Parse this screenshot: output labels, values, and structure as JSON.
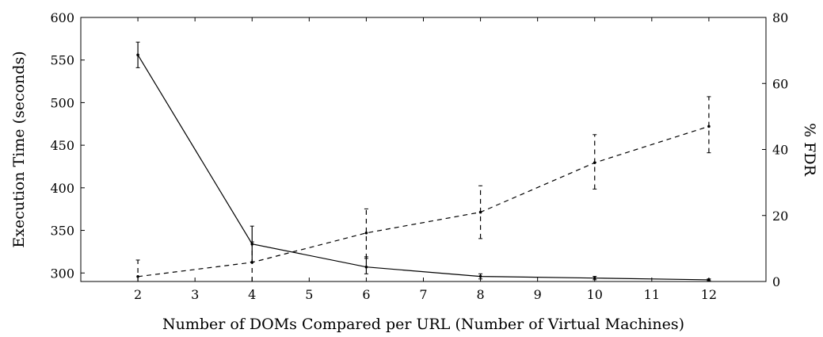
{
  "chart_data": {
    "type": "line",
    "xlabel": "Number of DOMs Compared per URL (Number of Virtual Machines)",
    "ylabel": "Execution Time (seconds)",
    "y2label": "% FDR",
    "xlim": [
      1,
      13
    ],
    "ylim": [
      290,
      600
    ],
    "y2lim": [
      0,
      80
    ],
    "x_ticks": [
      2,
      3,
      4,
      5,
      6,
      7,
      8,
      9,
      10,
      11,
      12
    ],
    "y_ticks": [
      300,
      350,
      400,
      450,
      500,
      550,
      600
    ],
    "y2_ticks": [
      0,
      20,
      40,
      60,
      80
    ],
    "grid": false,
    "legend": "none",
    "series": [
      {
        "axis": "left",
        "style": "solid",
        "color": "#000000",
        "x": [
          2,
          4,
          6,
          8,
          10,
          12
        ],
        "values": [
          556,
          334,
          307,
          296,
          294,
          292
        ],
        "err_low": [
          541,
          313,
          299,
          293,
          292,
          291
        ],
        "err_high": [
          571,
          355,
          319,
          299,
          296,
          293
        ]
      },
      {
        "axis": "right",
        "style": "dashed",
        "color": "#000000",
        "x": [
          2,
          4,
          6,
          8,
          10,
          12
        ],
        "values": [
          1.5,
          5.8,
          14.7,
          21,
          36,
          47
        ],
        "err_low": [
          0,
          0,
          7,
          13,
          28,
          39
        ],
        "err_high": [
          6.5,
          12,
          22,
          29,
          44.5,
          56
        ]
      }
    ]
  }
}
